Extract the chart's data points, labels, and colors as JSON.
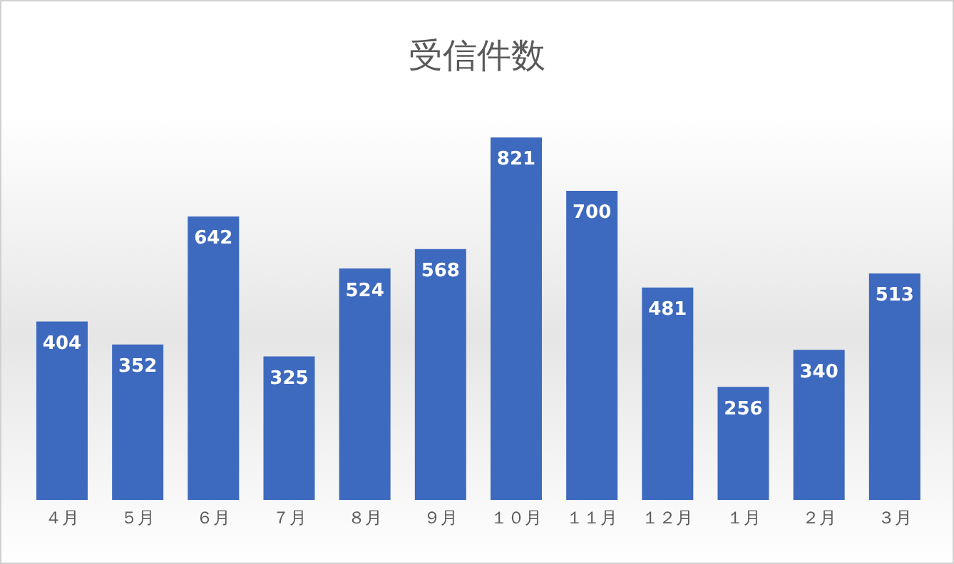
{
  "chart_data": {
    "type": "bar",
    "title": "受信件数",
    "categories": [
      "４月",
      "５月",
      "６月",
      "７月",
      "８月",
      "９月",
      "１０月",
      "１１月",
      "１２月",
      "１月",
      "２月",
      "３月"
    ],
    "values": [
      404,
      352,
      642,
      325,
      524,
      568,
      821,
      700,
      481,
      256,
      340,
      513
    ],
    "color": "#3d69be",
    "data_labels": true,
    "grid": false,
    "legend": false
  }
}
